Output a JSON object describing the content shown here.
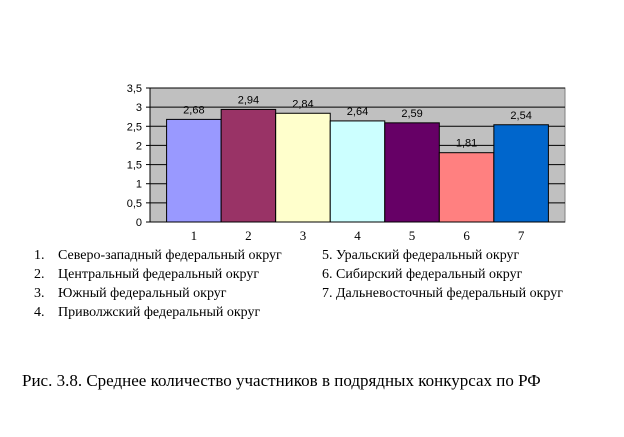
{
  "chart_data": {
    "type": "bar",
    "categories": [
      "1",
      "2",
      "3",
      "4",
      "5",
      "6",
      "7"
    ],
    "values": [
      2.68,
      2.94,
      2.84,
      2.64,
      2.59,
      1.81,
      2.54
    ],
    "value_labels": [
      "2,68",
      "2,94",
      "2,84",
      "2,64",
      "2,59",
      "1,81",
      "2,54"
    ],
    "bar_colors": [
      "#9999ff",
      "#993366",
      "#ffffcc",
      "#ccffff",
      "#660066",
      "#ff8080",
      "#0066cc"
    ],
    "ylim": [
      0,
      3.5
    ],
    "yticks": [
      {
        "v": 0,
        "label": "0"
      },
      {
        "v": 0.5,
        "label": "0,5"
      },
      {
        "v": 1,
        "label": "1"
      },
      {
        "v": 1.5,
        "label": "1,5"
      },
      {
        "v": 2,
        "label": "2"
      },
      {
        "v": 2.5,
        "label": "2,5"
      },
      {
        "v": 3,
        "label": "3"
      },
      {
        "v": 3.5,
        "label": "3,5"
      }
    ],
    "grid": true,
    "plot_background": "#c0c0c0",
    "title": "",
    "xlabel": "",
    "ylabel": ""
  },
  "legend": {
    "left": [
      {
        "num": "1.",
        "text": "Северо-западный федеральный округ"
      },
      {
        "num": "2.",
        "text": "Центральный федеральный округ"
      },
      {
        "num": "3.",
        "text": "Южный федеральный округ"
      },
      {
        "num": "4.",
        "text": "Приволжский федеральный округ"
      }
    ],
    "right": [
      {
        "text": "5. Уральский федеральный округ"
      },
      {
        "text": "6. Сибирский федеральный округ"
      },
      {
        "text": "7. Дальневосточный федеральный округ"
      }
    ]
  },
  "caption": "Рис. 3.8. Среднее количество участников в подрядных конкурсах по РФ"
}
